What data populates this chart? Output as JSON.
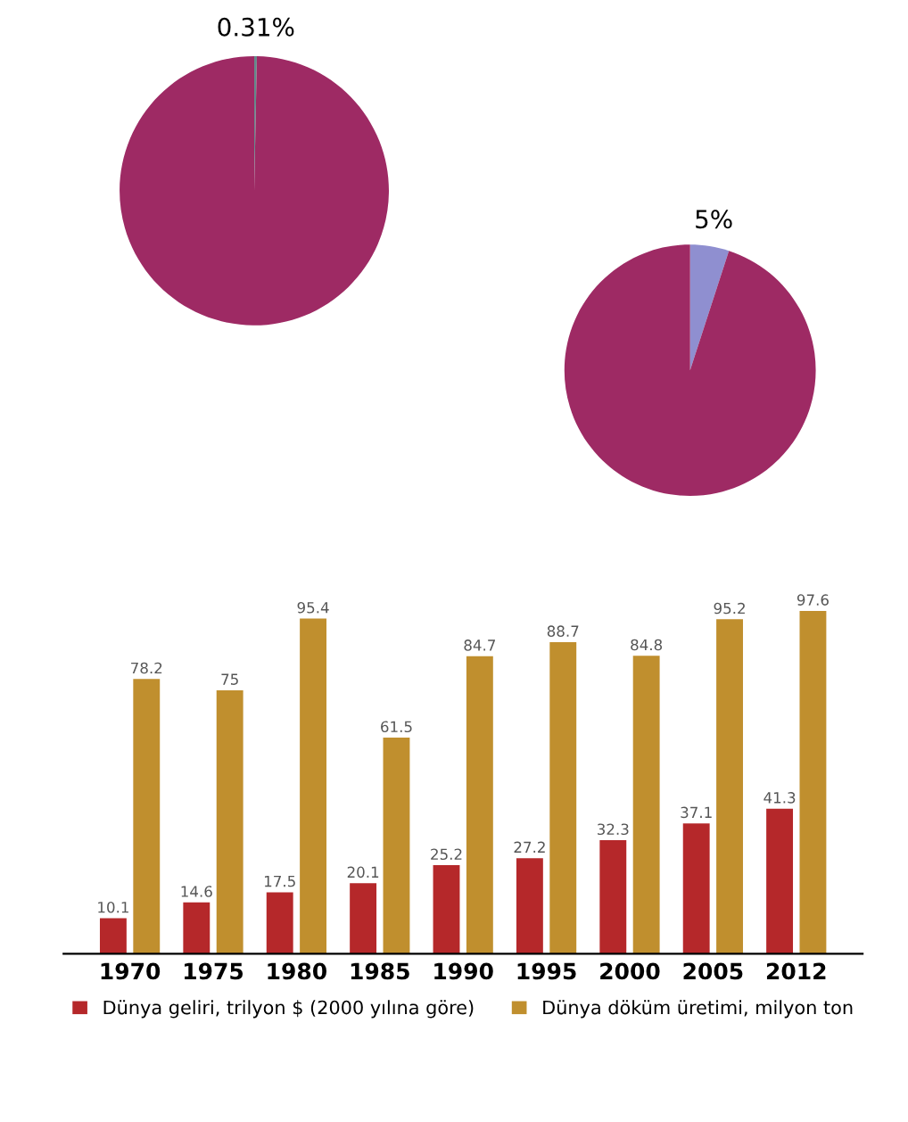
{
  "chart_data": [
    {
      "type": "pie",
      "categories": [
        null,
        null
      ],
      "values": [
        0.31,
        99.69
      ],
      "colors": [
        "#5f8a8a",
        "#9e2a64"
      ],
      "value_labels": [
        "0.31%",
        null
      ],
      "legend": false
    },
    {
      "type": "pie",
      "categories": [
        null,
        null
      ],
      "values": [
        5,
        95
      ],
      "colors": [
        "#8f8fd0",
        "#9e2a64"
      ],
      "value_labels": [
        "5%",
        null
      ],
      "legend": false
    },
    {
      "type": "bar",
      "categories": [
        "1970",
        "1975",
        "1980",
        "1985",
        "1990",
        "1995",
        "2000",
        "2005",
        "2012"
      ],
      "series": [
        {
          "name": "Dünya geliri, trilyon $ (2000 yılına göre)",
          "color": "#b5282a",
          "values": [
            10.1,
            14.6,
            17.5,
            20.1,
            25.2,
            27.2,
            32.3,
            37.1,
            41.3
          ]
        },
        {
          "name": "Dünya döküm üretimi, milyon ton",
          "color": "#c08f2e",
          "values": [
            78.2,
            75,
            95.4,
            61.5,
            84.7,
            88.7,
            84.8,
            95.2,
            97.6
          ]
        }
      ],
      "data_labels": true,
      "legend": "bottom",
      "grid": false
    }
  ]
}
